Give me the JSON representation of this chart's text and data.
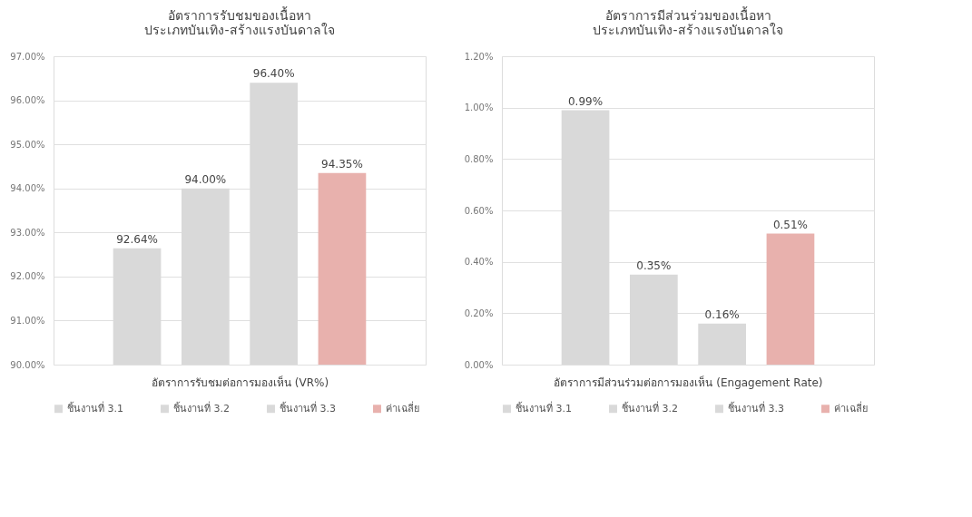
{
  "chart_data": [
    {
      "type": "bar",
      "title": "อัตราการรับชมของเนื้อหา\nประเภทบันเทิง-สร้างแรงบันดาลใจ",
      "xlabel": "อัตราการรับชมต่อการมองเห็น (VR%)",
      "categories": [
        null
      ],
      "series": [
        {
          "name": "ชิ้นงานที่ 3.1",
          "color": "#d9d9d9",
          "values": [
            92.64
          ],
          "value_labels": [
            "92.64%"
          ]
        },
        {
          "name": "ชิ้นงานที่ 3.2",
          "color": "#d9d9d9",
          "values": [
            94.0
          ],
          "value_labels": [
            "94.00%"
          ]
        },
        {
          "name": "ชิ้นงานที่ 3.3",
          "color": "#d9d9d9",
          "values": [
            96.4
          ],
          "value_labels": [
            "96.40%"
          ]
        },
        {
          "name": "ค่าเฉลี่ย",
          "color": "#e8b1ad",
          "values": [
            94.35
          ],
          "value_labels": [
            "94.35%"
          ]
        }
      ],
      "ylim": [
        90,
        97
      ],
      "yticks": [
        {
          "value": 90,
          "label": "90.00%"
        },
        {
          "value": 91,
          "label": "91.00%"
        },
        {
          "value": 92,
          "label": "92.00%"
        },
        {
          "value": 93,
          "label": "93.00%"
        },
        {
          "value": 94,
          "label": "94.00%"
        },
        {
          "value": 95,
          "label": "95.00%"
        },
        {
          "value": 96,
          "label": "96.00%"
        },
        {
          "value": 97,
          "label": "97.00%"
        }
      ],
      "grid": "y",
      "legend": "bottom",
      "tick_labels": "y"
    },
    {
      "type": "bar",
      "title": "อัตราการมีส่วนร่วมของเนื้อหา\nประเภทบันเทิง-สร้างแรงบันดาลใจ",
      "xlabel": "อัตราการมีส่วนร่วมต่อการมองเห็น (Engagement Rate)",
      "categories": [
        null
      ],
      "series": [
        {
          "name": "ชิ้นงานที่ 3.1",
          "color": "#d9d9d9",
          "values": [
            0.99
          ],
          "value_labels": [
            "0.99%"
          ]
        },
        {
          "name": "ชิ้นงานที่ 3.2",
          "color": "#d9d9d9",
          "values": [
            0.35
          ],
          "value_labels": [
            "0.35%"
          ]
        },
        {
          "name": "ชิ้นงานที่ 3.3",
          "color": "#d9d9d9",
          "values": [
            0.16
          ],
          "value_labels": [
            "0.16%"
          ]
        },
        {
          "name": "ค่าเฉลี่ย",
          "color": "#e8b1ad",
          "values": [
            0.51
          ],
          "value_labels": [
            "0.51%"
          ]
        }
      ],
      "ylim": [
        0,
        1.2
      ],
      "yticks": [
        {
          "value": 0,
          "label": "0.00%"
        },
        {
          "value": 0.2,
          "label": "0.20%"
        },
        {
          "value": 0.4,
          "label": "0.40%"
        },
        {
          "value": 0.6,
          "label": "0.60%"
        },
        {
          "value": 0.8,
          "label": "0.80%"
        },
        {
          "value": 1.0,
          "label": "1.00%"
        },
        {
          "value": 1.2,
          "label": "1.20%"
        }
      ],
      "grid": "y",
      "legend": "bottom",
      "tick_labels": "y"
    }
  ]
}
